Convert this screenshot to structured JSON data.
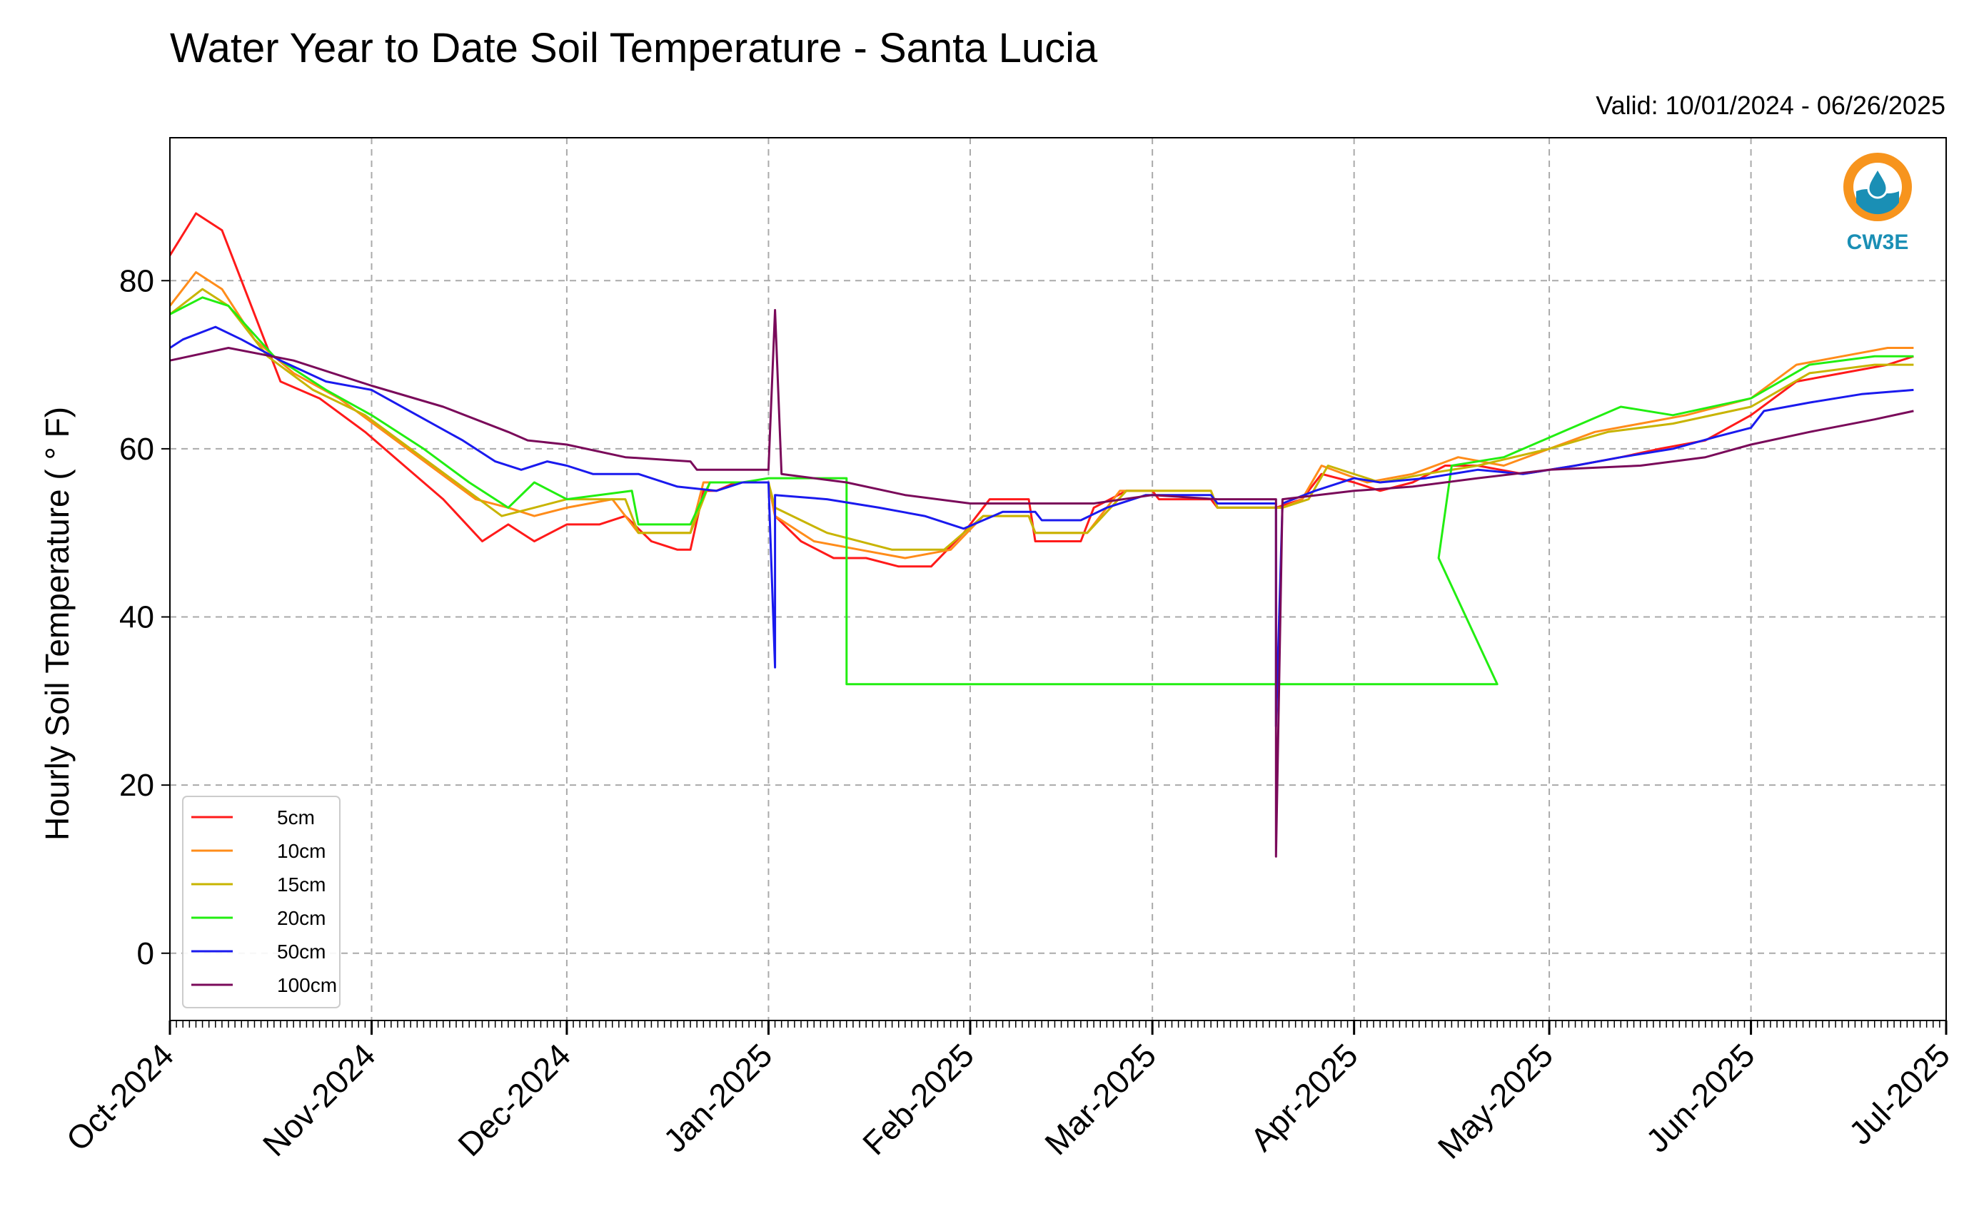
{
  "chart_data": {
    "type": "line",
    "title": "Water Year to Date Soil Temperature - Santa Lucia",
    "subtitle": "Valid: 10/01/2024 - 06/26/2025",
    "ylabel": "Hourly Soil Temperature ( ° F)",
    "xlabel": "",
    "xlim": [
      "2024-10-01",
      "2025-07-01"
    ],
    "ylim": [
      -8,
      97
    ],
    "yticks": [
      0,
      20,
      40,
      60,
      80
    ],
    "xtick_labels": [
      "Oct-2024",
      "Nov-2024",
      "Dec-2024",
      "Jan-2025",
      "Feb-2025",
      "Mar-2025",
      "Apr-2025",
      "May-2025",
      "Jun-2025",
      "Jul-2025"
    ],
    "grid": true,
    "legend_position": "lower-left",
    "logo_text": "CW3E",
    "series": [
      {
        "name": "5cm",
        "color": "#ff1a1a",
        "points": [
          [
            "2024-10-01",
            83
          ],
          [
            "2024-10-05",
            88
          ],
          [
            "2024-10-09",
            86
          ],
          [
            "2024-10-13",
            78
          ],
          [
            "2024-10-18",
            68
          ],
          [
            "2024-10-24",
            66
          ],
          [
            "2024-10-31",
            62
          ],
          [
            "2024-11-06",
            58
          ],
          [
            "2024-11-12",
            54
          ],
          [
            "2024-11-18",
            49
          ],
          [
            "2024-11-22",
            51
          ],
          [
            "2024-11-26",
            49
          ],
          [
            "2024-12-01",
            51
          ],
          [
            "2024-12-06",
            51
          ],
          [
            "2024-12-10",
            52
          ],
          [
            "2024-12-14",
            49
          ],
          [
            "2024-12-18",
            48
          ],
          [
            "2024-12-20",
            48
          ],
          [
            "2024-12-22",
            55
          ],
          [
            "2024-12-24",
            55
          ],
          [
            "2024-12-27",
            56
          ],
          [
            "2025-01-01",
            56
          ],
          [
            "2025-01-02",
            52
          ],
          [
            "2025-01-06",
            49
          ],
          [
            "2025-01-11",
            47
          ],
          [
            "2025-01-16",
            47
          ],
          [
            "2025-01-21",
            46
          ],
          [
            "2025-01-26",
            46
          ],
          [
            "2025-01-31",
            50
          ],
          [
            "2025-02-04",
            54
          ],
          [
            "2025-02-10",
            54
          ],
          [
            "2025-02-11",
            49
          ],
          [
            "2025-02-18",
            49
          ],
          [
            "2025-02-20",
            53
          ],
          [
            "2025-02-25",
            55
          ],
          [
            "2025-03-01",
            55
          ],
          [
            "2025-03-02",
            54
          ],
          [
            "2025-03-10",
            54
          ],
          [
            "2025-03-11",
            53
          ],
          [
            "2025-03-20",
            53
          ],
          [
            "2025-03-24",
            54
          ],
          [
            "2025-03-27",
            57
          ],
          [
            "2025-04-01",
            56
          ],
          [
            "2025-04-05",
            55
          ],
          [
            "2025-04-10",
            56
          ],
          [
            "2025-04-15",
            58
          ],
          [
            "2025-04-20",
            58
          ],
          [
            "2025-04-27",
            57
          ],
          [
            "2025-05-05",
            58
          ],
          [
            "2025-05-12",
            59
          ],
          [
            "2025-05-18",
            60
          ],
          [
            "2025-05-25",
            61
          ],
          [
            "2025-06-01",
            64
          ],
          [
            "2025-06-08",
            68
          ],
          [
            "2025-06-15",
            69
          ],
          [
            "2025-06-22",
            70
          ],
          [
            "2025-06-26",
            71
          ]
        ]
      },
      {
        "name": "10cm",
        "color": "#ff8c1a",
        "points": [
          [
            "2024-10-01",
            77
          ],
          [
            "2024-10-05",
            81
          ],
          [
            "2024-10-09",
            79
          ],
          [
            "2024-10-14",
            73
          ],
          [
            "2024-10-20",
            69
          ],
          [
            "2024-10-27",
            66
          ],
          [
            "2024-11-03",
            62
          ],
          [
            "2024-11-10",
            58
          ],
          [
            "2024-11-17",
            54
          ],
          [
            "2024-11-22",
            53
          ],
          [
            "2024-11-26",
            52
          ],
          [
            "2024-12-01",
            53
          ],
          [
            "2024-12-08",
            54
          ],
          [
            "2024-12-12",
            50
          ],
          [
            "2024-12-20",
            50
          ],
          [
            "2024-12-22",
            56
          ],
          [
            "2024-12-27",
            56
          ],
          [
            "2025-01-01",
            56
          ],
          [
            "2025-01-02",
            52
          ],
          [
            "2025-01-08",
            49
          ],
          [
            "2025-01-15",
            48
          ],
          [
            "2025-01-22",
            47
          ],
          [
            "2025-01-29",
            48
          ],
          [
            "2025-02-03",
            52
          ],
          [
            "2025-02-10",
            52
          ],
          [
            "2025-02-11",
            50
          ],
          [
            "2025-02-19",
            50
          ],
          [
            "2025-02-24",
            55
          ],
          [
            "2025-03-01",
            55
          ],
          [
            "2025-03-10",
            55
          ],
          [
            "2025-03-11",
            53
          ],
          [
            "2025-03-21",
            53
          ],
          [
            "2025-03-24",
            54
          ],
          [
            "2025-03-27",
            58
          ],
          [
            "2025-04-03",
            56
          ],
          [
            "2025-04-10",
            57
          ],
          [
            "2025-04-17",
            59
          ],
          [
            "2025-04-24",
            58
          ],
          [
            "2025-05-01",
            60
          ],
          [
            "2025-05-08",
            62
          ],
          [
            "2025-05-15",
            63
          ],
          [
            "2025-05-22",
            64
          ],
          [
            "2025-06-01",
            66
          ],
          [
            "2025-06-08",
            70
          ],
          [
            "2025-06-15",
            71
          ],
          [
            "2025-06-22",
            72
          ],
          [
            "2025-06-26",
            72
          ]
        ]
      },
      {
        "name": "15cm",
        "color": "#c8b400",
        "points": [
          [
            "2024-10-01",
            76
          ],
          [
            "2024-10-06",
            79
          ],
          [
            "2024-10-10",
            77
          ],
          [
            "2024-10-16",
            71
          ],
          [
            "2024-10-23",
            67
          ],
          [
            "2024-10-31",
            64
          ],
          [
            "2024-11-07",
            60
          ],
          [
            "2024-11-14",
            56
          ],
          [
            "2024-11-21",
            52
          ],
          [
            "2024-11-26",
            53
          ],
          [
            "2024-12-01",
            54
          ],
          [
            "2024-12-10",
            54
          ],
          [
            "2024-12-12",
            50
          ],
          [
            "2024-12-20",
            50
          ],
          [
            "2024-12-23",
            56
          ],
          [
            "2024-12-28",
            56
          ],
          [
            "2025-01-01",
            56
          ],
          [
            "2025-01-02",
            53
          ],
          [
            "2025-01-10",
            50
          ],
          [
            "2025-01-20",
            48
          ],
          [
            "2025-01-28",
            48
          ],
          [
            "2025-02-03",
            52
          ],
          [
            "2025-02-10",
            52
          ],
          [
            "2025-02-11",
            50
          ],
          [
            "2025-02-19",
            50
          ],
          [
            "2025-02-25",
            55
          ],
          [
            "2025-03-01",
            55
          ],
          [
            "2025-03-10",
            55
          ],
          [
            "2025-03-11",
            53
          ],
          [
            "2025-03-21",
            53
          ],
          [
            "2025-03-25",
            54
          ],
          [
            "2025-03-28",
            58
          ],
          [
            "2025-04-05",
            56
          ],
          [
            "2025-04-12",
            57
          ],
          [
            "2025-04-20",
            58
          ],
          [
            "2025-05-01",
            60
          ],
          [
            "2025-05-10",
            62
          ],
          [
            "2025-05-20",
            63
          ],
          [
            "2025-06-01",
            65
          ],
          [
            "2025-06-10",
            69
          ],
          [
            "2025-06-20",
            70
          ],
          [
            "2025-06-26",
            70
          ]
        ]
      },
      {
        "name": "20cm",
        "color": "#22ee11",
        "points": [
          [
            "2024-10-01",
            76
          ],
          [
            "2024-10-06",
            78
          ],
          [
            "2024-10-10",
            77
          ],
          [
            "2024-10-17",
            71
          ],
          [
            "2024-10-25",
            67
          ],
          [
            "2024-11-01",
            64
          ],
          [
            "2024-11-09",
            60
          ],
          [
            "2024-11-16",
            56
          ],
          [
            "2024-11-22",
            53
          ],
          [
            "2024-11-26",
            56
          ],
          [
            "2024-12-01",
            54
          ],
          [
            "2024-12-11",
            55
          ],
          [
            "2024-12-12",
            51
          ],
          [
            "2024-12-20",
            51
          ],
          [
            "2024-12-23",
            56
          ],
          [
            "2024-12-28",
            56
          ],
          [
            "2025-01-01",
            56.5
          ],
          [
            "2025-01-13",
            56.5
          ],
          [
            "2025-01-13",
            32
          ],
          [
            "2025-03-07",
            32
          ],
          [
            "2025-04-23",
            32
          ],
          [
            "2025-04-14",
            47
          ],
          [
            "2025-04-16",
            58
          ],
          [
            "2025-04-24",
            59
          ],
          [
            "2025-05-03",
            62
          ],
          [
            "2025-05-12",
            65
          ],
          [
            "2025-05-20",
            64
          ],
          [
            "2025-06-01",
            66
          ],
          [
            "2025-06-10",
            70
          ],
          [
            "2025-06-20",
            71
          ],
          [
            "2025-06-26",
            71
          ]
        ]
      },
      {
        "name": "50cm",
        "color": "#1a1aee",
        "points": [
          [
            "2024-10-01",
            72
          ],
          [
            "2024-10-03",
            73
          ],
          [
            "2024-10-08",
            74.5
          ],
          [
            "2024-10-12",
            73
          ],
          [
            "2024-10-18",
            70.5
          ],
          [
            "2024-10-25",
            68
          ],
          [
            "2024-11-01",
            67
          ],
          [
            "2024-11-08",
            64
          ],
          [
            "2024-11-15",
            61
          ],
          [
            "2024-11-20",
            58.5
          ],
          [
            "2024-11-24",
            57.5
          ],
          [
            "2024-11-28",
            58.5
          ],
          [
            "2024-12-01",
            58
          ],
          [
            "2024-12-05",
            57
          ],
          [
            "2024-12-12",
            57
          ],
          [
            "2024-12-18",
            55.5
          ],
          [
            "2024-12-24",
            55
          ],
          [
            "2024-12-28",
            56
          ],
          [
            "2025-01-01",
            56
          ],
          [
            "2025-01-02",
            34
          ],
          [
            "2025-01-02",
            54.5
          ],
          [
            "2025-01-10",
            54
          ],
          [
            "2025-01-18",
            53
          ],
          [
            "2025-01-25",
            52
          ],
          [
            "2025-01-31",
            50.5
          ],
          [
            "2025-02-03",
            51.5
          ],
          [
            "2025-02-06",
            52.5
          ],
          [
            "2025-02-11",
            52.5
          ],
          [
            "2025-02-12",
            51.5
          ],
          [
            "2025-02-18",
            51.5
          ],
          [
            "2025-02-22",
            53
          ],
          [
            "2025-02-28",
            54.5
          ],
          [
            "2025-03-01",
            54.5
          ],
          [
            "2025-03-10",
            54.5
          ],
          [
            "2025-03-11",
            53.5
          ],
          [
            "2025-03-20",
            53.5
          ],
          [
            "2025-03-20",
            27
          ],
          [
            "2025-03-21",
            53.5
          ],
          [
            "2025-03-26",
            55
          ],
          [
            "2025-04-01",
            56.5
          ],
          [
            "2025-04-05",
            56
          ],
          [
            "2025-04-12",
            56.5
          ],
          [
            "2025-04-20",
            57.5
          ],
          [
            "2025-04-27",
            57
          ],
          [
            "2025-05-05",
            58
          ],
          [
            "2025-05-12",
            59
          ],
          [
            "2025-05-20",
            60
          ],
          [
            "2025-05-27",
            61.5
          ],
          [
            "2025-06-01",
            62.5
          ],
          [
            "2025-06-03",
            64.5
          ],
          [
            "2025-06-10",
            65.5
          ],
          [
            "2025-06-18",
            66.5
          ],
          [
            "2025-06-26",
            67
          ]
        ]
      },
      {
        "name": "100cm",
        "color": "#7a0a5a",
        "points": [
          [
            "2024-10-01",
            70.5
          ],
          [
            "2024-10-10",
            72
          ],
          [
            "2024-10-20",
            70.5
          ],
          [
            "2024-11-01",
            67.5
          ],
          [
            "2024-11-12",
            65
          ],
          [
            "2024-11-22",
            62
          ],
          [
            "2024-11-25",
            61
          ],
          [
            "2024-12-01",
            60.5
          ],
          [
            "2024-12-10",
            59
          ],
          [
            "2024-12-20",
            58.5
          ],
          [
            "2024-12-21",
            57.5
          ],
          [
            "2025-01-01",
            57.5
          ],
          [
            "2025-01-02",
            76.5
          ],
          [
            "2025-01-03",
            57
          ],
          [
            "2025-01-13",
            56
          ],
          [
            "2025-01-22",
            54.5
          ],
          [
            "2025-02-01",
            53.5
          ],
          [
            "2025-02-10",
            53.5
          ],
          [
            "2025-02-20",
            53.5
          ],
          [
            "2025-03-01",
            54.5
          ],
          [
            "2025-03-11",
            54
          ],
          [
            "2025-03-20",
            54
          ],
          [
            "2025-03-20",
            11.5
          ],
          [
            "2025-03-21",
            54
          ],
          [
            "2025-04-01",
            55
          ],
          [
            "2025-04-10",
            55.5
          ],
          [
            "2025-04-20",
            56.5
          ],
          [
            "2025-05-01",
            57.5
          ],
          [
            "2025-05-15",
            58
          ],
          [
            "2025-05-25",
            59
          ],
          [
            "2025-06-01",
            60.5
          ],
          [
            "2025-06-10",
            62
          ],
          [
            "2025-06-20",
            63.5
          ],
          [
            "2025-06-26",
            64.5
          ]
        ]
      }
    ]
  }
}
